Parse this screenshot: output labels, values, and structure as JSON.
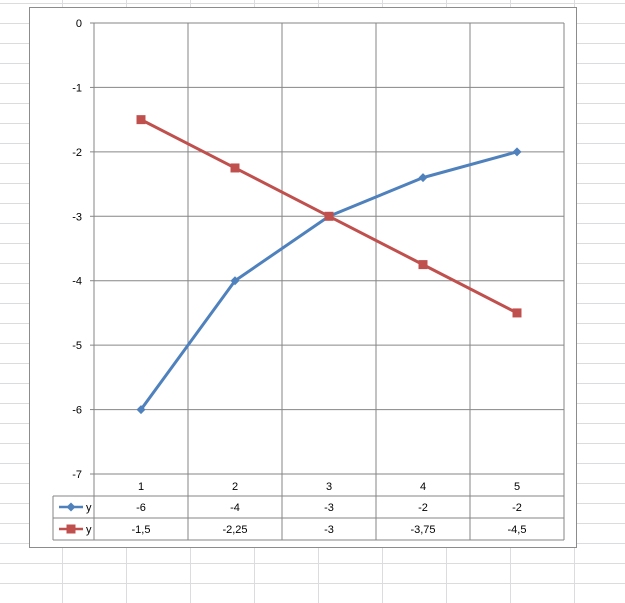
{
  "chart_data": {
    "type": "line",
    "categories": [
      "1",
      "2",
      "3",
      "4",
      "5"
    ],
    "series": [
      {
        "name": "y",
        "values": [
          -6,
          -4,
          -3,
          -2.4,
          -2
        ],
        "table_values": [
          "-6",
          "-4",
          "-3",
          "-2",
          "-2"
        ],
        "color": "#4f81bd",
        "marker": "diamond"
      },
      {
        "name": "y",
        "values": [
          -1.5,
          -2.25,
          -3,
          -3.75,
          -4.5
        ],
        "table_values": [
          "-1,5",
          "-2,25",
          "-3",
          "-3,75",
          "-4,5"
        ],
        "color": "#c0504d",
        "marker": "square"
      }
    ],
    "y_ticks": [
      "0",
      "-1",
      "-2",
      "-3",
      "-4",
      "-5",
      "-6",
      "-7"
    ],
    "ylim": [
      -7,
      0
    ],
    "grid": true,
    "data_table": true,
    "title": "",
    "xlabel": "",
    "ylabel": ""
  }
}
